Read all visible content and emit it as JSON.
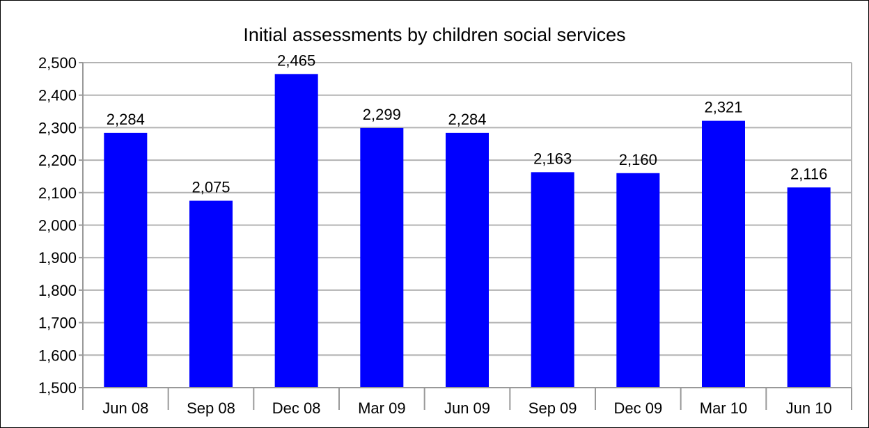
{
  "chart_data": {
    "type": "bar",
    "title": "Initial assessments by children social services",
    "xlabel": "",
    "ylabel": "",
    "categories": [
      "Jun 08",
      "Sep 08",
      "Dec 08",
      "Mar 09",
      "Jun 09",
      "Sep 09",
      "Dec 09",
      "Mar 10",
      "Jun 10"
    ],
    "values": [
      2284,
      2075,
      2465,
      2299,
      2284,
      2163,
      2160,
      2321,
      2116
    ],
    "data_labels": [
      "2,284",
      "2,075",
      "2,465",
      "2,299",
      "2,284",
      "2,163",
      "2,160",
      "2,321",
      "2,116"
    ],
    "ylim": [
      1500,
      2500
    ],
    "yticks": [
      1500,
      1600,
      1700,
      1800,
      1900,
      2000,
      2100,
      2200,
      2300,
      2400,
      2500
    ],
    "ytick_labels": [
      "1,500",
      "1,600",
      "1,700",
      "1,800",
      "1,900",
      "2,000",
      "2,100",
      "2,200",
      "2,300",
      "2,400",
      "2,500"
    ],
    "grid": true,
    "legend": "none",
    "colors": {
      "bar": "#0000ff",
      "grid": "#b3b3b3",
      "axis": "#999999"
    }
  }
}
